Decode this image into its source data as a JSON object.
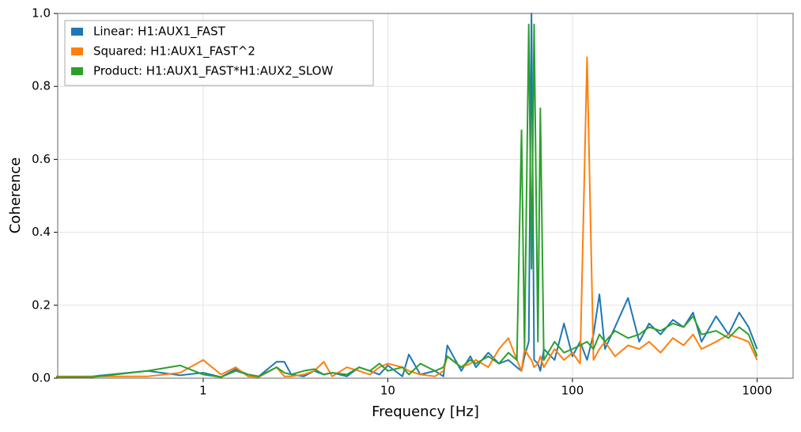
{
  "chart_data": {
    "type": "line",
    "x_label": "Frequency [Hz]",
    "y_label": "Coherence",
    "x": [
      0.16,
      0.25,
      0.5,
      0.75,
      1,
      1.25,
      1.5,
      1.75,
      2,
      2.5,
      2.75,
      3,
      3.5,
      4,
      4.5,
      5,
      6,
      7,
      8,
      9,
      10,
      12,
      13,
      15,
      18,
      20,
      21,
      25,
      28,
      30,
      35,
      40,
      45,
      50,
      53,
      55,
      58,
      60,
      62,
      65,
      67,
      70,
      80,
      90,
      100,
      110,
      120,
      130,
      140,
      150,
      170,
      200,
      230,
      260,
      300,
      350,
      400,
      450,
      500,
      600,
      700,
      800,
      900,
      1000
    ],
    "series": [
      {
        "name": "Linear: H1:AUX1_FAST",
        "color": "#1f77b4",
        "values": [
          0.003,
          0.005,
          0.02,
          0.008,
          0.015,
          0.003,
          0.025,
          0.01,
          0.005,
          0.045,
          0.045,
          0.01,
          0.005,
          0.02,
          0.01,
          0.015,
          0.005,
          0.03,
          0.02,
          0.01,
          0.035,
          0.005,
          0.065,
          0.01,
          0.02,
          0.005,
          0.09,
          0.02,
          0.06,
          0.03,
          0.07,
          0.04,
          0.05,
          0.03,
          0.02,
          0.06,
          0.1,
          1.0,
          0.05,
          0.04,
          0.02,
          0.08,
          0.05,
          0.15,
          0.06,
          0.1,
          0.05,
          0.12,
          0.23,
          0.08,
          0.14,
          0.22,
          0.1,
          0.15,
          0.12,
          0.16,
          0.14,
          0.18,
          0.1,
          0.17,
          0.12,
          0.18,
          0.14,
          0.08
        ]
      },
      {
        "name": "Squared: H1:AUX1_FAST^2",
        "color": "#ff7f0e",
        "values": [
          0.005,
          0.005,
          0.005,
          0.015,
          0.05,
          0.01,
          0.03,
          0.005,
          0.003,
          0.03,
          0.005,
          0.005,
          0.01,
          0.02,
          0.045,
          0.005,
          0.03,
          0.02,
          0.01,
          0.03,
          0.04,
          0.03,
          0.02,
          0.01,
          0.005,
          0.02,
          0.06,
          0.03,
          0.04,
          0.05,
          0.03,
          0.08,
          0.11,
          0.05,
          0.02,
          0.08,
          0.06,
          0.05,
          0.03,
          0.04,
          0.06,
          0.03,
          0.08,
          0.05,
          0.07,
          0.04,
          0.88,
          0.05,
          0.08,
          0.1,
          0.06,
          0.09,
          0.08,
          0.1,
          0.07,
          0.11,
          0.09,
          0.12,
          0.08,
          0.1,
          0.12,
          0.11,
          0.1,
          0.05
        ]
      },
      {
        "name": "Product: H1:AUX1_FAST*H1:AUX2_SLOW",
        "color": "#2ca02c",
        "values": [
          0.003,
          0.003,
          0.02,
          0.035,
          0.01,
          0.003,
          0.02,
          0.01,
          0.005,
          0.03,
          0.015,
          0.01,
          0.02,
          0.025,
          0.01,
          0.015,
          0.01,
          0.03,
          0.02,
          0.04,
          0.02,
          0.03,
          0.01,
          0.04,
          0.02,
          0.03,
          0.06,
          0.03,
          0.05,
          0.04,
          0.06,
          0.04,
          0.07,
          0.05,
          0.68,
          0.08,
          0.97,
          0.3,
          0.97,
          0.1,
          0.74,
          0.05,
          0.1,
          0.07,
          0.08,
          0.09,
          0.1,
          0.08,
          0.12,
          0.1,
          0.13,
          0.11,
          0.12,
          0.14,
          0.13,
          0.15,
          0.14,
          0.17,
          0.12,
          0.13,
          0.11,
          0.14,
          0.12,
          0.06
        ]
      }
    ],
    "xlim": [
      0.163,
      1567
    ],
    "xlog": true,
    "xticks": [
      1,
      10,
      100,
      1000
    ],
    "ylim": [
      0,
      1
    ],
    "yticks": [
      {
        "value": 0,
        "label": "0.0"
      },
      {
        "value": 0.2,
        "label": "0.2"
      },
      {
        "value": 0.4,
        "label": "0.4"
      },
      {
        "value": 0.6,
        "label": "0.6"
      },
      {
        "value": 0.8,
        "label": "0.8"
      },
      {
        "value": 1,
        "label": "1.0"
      }
    ],
    "grid": true,
    "legend": "upper-left"
  }
}
